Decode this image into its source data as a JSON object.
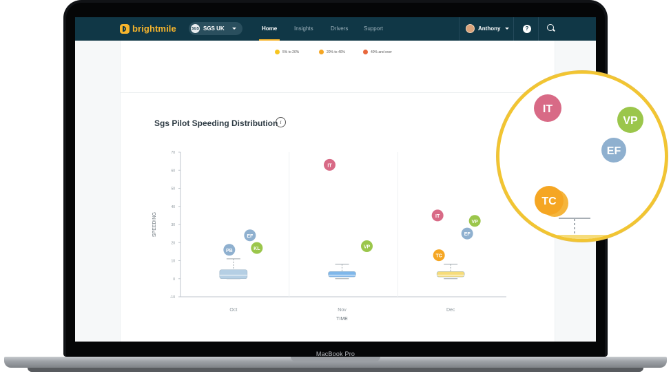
{
  "device": {
    "label": "MacBook Pro"
  },
  "nav": {
    "brand": "brightmile",
    "org": {
      "badge": "SGS",
      "label": "SGS UK"
    },
    "tabs": [
      {
        "label": "Home",
        "active": true
      },
      {
        "label": "Insights",
        "active": false
      },
      {
        "label": "Drivers",
        "active": false
      },
      {
        "label": "Support",
        "active": false
      }
    ],
    "user": "Anthony",
    "help_icon": "?"
  },
  "legend": [
    {
      "label": "5% to 20%",
      "color": "#f7c520"
    },
    {
      "label": "20% to 40%",
      "color": "#f5a623"
    },
    {
      "label": "40% and over",
      "color": "#e8673c"
    }
  ],
  "chart": {
    "title": "Sgs Pilot Speeding Distribution",
    "info": "i"
  },
  "chart_data": {
    "type": "box",
    "xlabel": "TIME",
    "ylabel": "SPEEDING",
    "ylim": [
      -10,
      70
    ],
    "yticks": [
      "-10",
      "0",
      "10",
      "20",
      "30",
      "40",
      "50",
      "60",
      "70"
    ],
    "categories": [
      "Oct",
      "Nov",
      "Dec"
    ],
    "boxes": [
      {
        "category": "Oct",
        "whisker_low": 0,
        "q1": 0,
        "median": 2,
        "q3": 5,
        "whisker_high": 11,
        "color": "#b5cfe4"
      },
      {
        "category": "Nov",
        "whisker_low": 0,
        "q1": 1,
        "median": 2,
        "q3": 4,
        "whisker_high": 8,
        "color": "#7fb7ea"
      },
      {
        "category": "Dec",
        "whisker_low": 0,
        "q1": 1,
        "median": 2,
        "q3": 4,
        "whisker_high": 8,
        "color": "#f6dc7a"
      }
    ],
    "outliers": [
      {
        "category": "Oct",
        "label": "PB",
        "y": 16,
        "color": "#8fb0cf"
      },
      {
        "category": "Oct",
        "label": "EF",
        "y": 24,
        "color": "#8fb0cf"
      },
      {
        "category": "Oct",
        "label": "KL",
        "y": 17,
        "color": "#9bc64b"
      },
      {
        "category": "Nov",
        "label": "IT",
        "y": 63,
        "color": "#d86a86"
      },
      {
        "category": "Nov",
        "label": "VP",
        "y": 18,
        "color": "#9bc64b"
      },
      {
        "category": "Dec",
        "label": "IT",
        "y": 35,
        "color": "#d86a86"
      },
      {
        "category": "Dec",
        "label": "VP",
        "y": 32,
        "color": "#9bc64b"
      },
      {
        "category": "Dec",
        "label": "EF",
        "y": 25,
        "color": "#8fb0cf"
      },
      {
        "category": "Dec",
        "label": "TC",
        "y": 13,
        "color": "#f5a623"
      }
    ]
  },
  "zoom": {
    "bubbles": [
      {
        "label": "IT",
        "color": "#d86a86"
      },
      {
        "label": "VP",
        "color": "#9bc64b"
      },
      {
        "label": "EF",
        "color": "#8fb0cf"
      },
      {
        "label": "TC",
        "color": "#f5a623"
      }
    ]
  }
}
